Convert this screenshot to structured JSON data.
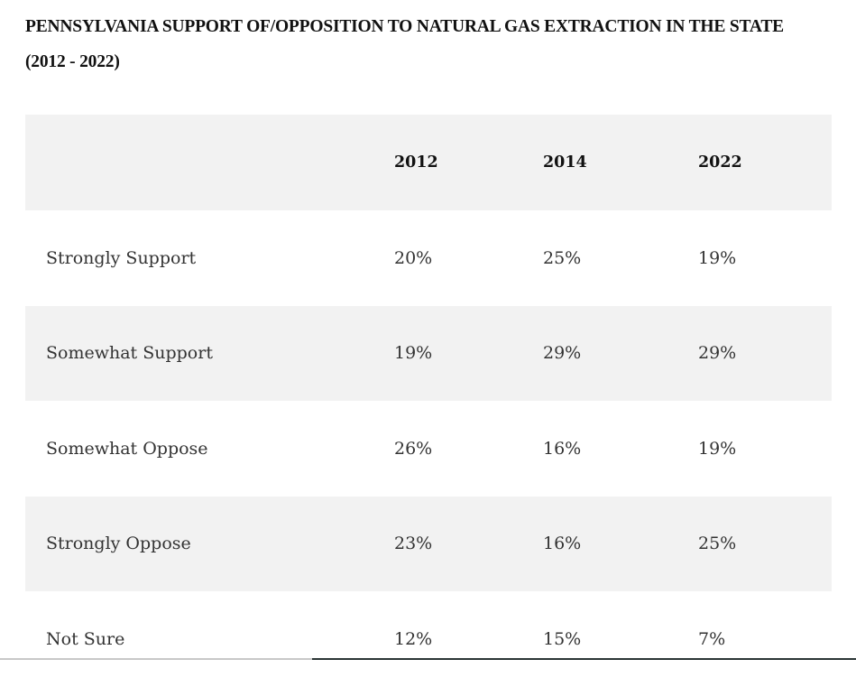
{
  "title": {
    "line1": "PENNSYLVANIA SUPPORT OF/OPPOSITION TO NATURAL GAS EXTRACTION IN THE STATE",
    "line2": "(2012 - 2022)"
  },
  "table": {
    "headers": [
      "",
      "2012",
      "2014",
      "2022"
    ],
    "rows": [
      {
        "label": "Strongly Support",
        "values": [
          "20%",
          "25%",
          "19%"
        ]
      },
      {
        "label": "Somewhat Support",
        "values": [
          "19%",
          "29%",
          "29%"
        ]
      },
      {
        "label": "Somewhat Oppose",
        "values": [
          "26%",
          "16%",
          "19%"
        ]
      },
      {
        "label": "Strongly Oppose",
        "values": [
          "23%",
          "16%",
          "25%"
        ]
      },
      {
        "label": "Not Sure",
        "values": [
          "12%",
          "15%",
          "7%"
        ]
      }
    ]
  },
  "colors": {
    "shaded_row": "#f2f2f2",
    "text": "#333333"
  }
}
